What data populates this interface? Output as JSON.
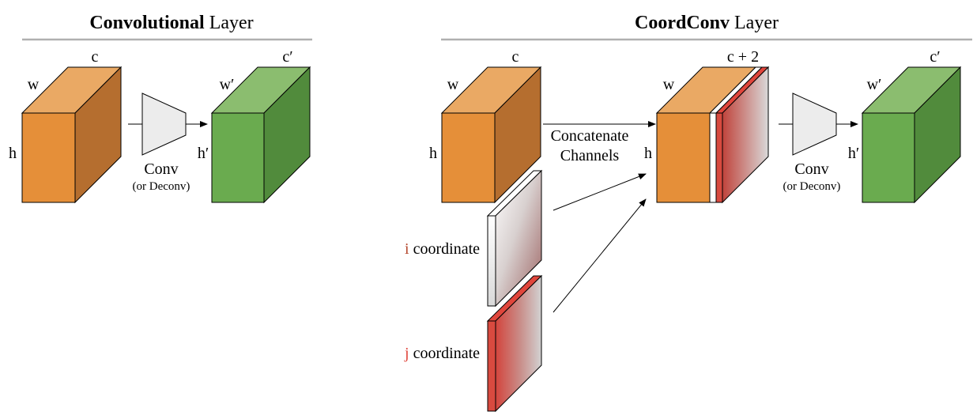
{
  "left_panel": {
    "title_bold": "Convolutional",
    "title_rest": " Layer",
    "input_block": {
      "w": "w",
      "c": "c",
      "h": "h"
    },
    "op": {
      "label": "Conv",
      "sublabel": "(or Deconv)"
    },
    "output_block": {
      "w": "w′",
      "c": "c′",
      "h": "h′"
    }
  },
  "right_panel": {
    "title_bold": "CoordConv",
    "title_rest": " Layer",
    "input_block": {
      "w": "w",
      "c": "c",
      "h": "h"
    },
    "i_coord": {
      "letter": "i",
      "text": " coordinate"
    },
    "j_coord": {
      "letter": "j",
      "text": " coordinate"
    },
    "concat": {
      "line1": "Concatenate",
      "line2": "Channels"
    },
    "concat_block": {
      "w": "w",
      "c": "c + 2",
      "h": "h"
    },
    "op": {
      "label": "Conv",
      "sublabel": "(or Deconv)"
    },
    "output_block": {
      "w": "w′",
      "c": "c′",
      "h": "h′"
    }
  },
  "colors": {
    "orange_front": "#e58f39",
    "orange_top": "#eaa964",
    "orange_side": "#b56e2f",
    "green_front": "#6aab4f",
    "green_top": "#8bbd6f",
    "green_side": "#518b3c",
    "coord_red": "#e0463c",
    "coord_gray": "#d0d0d0",
    "coord_letter": "#b5482e",
    "divider": "#b0b0b0"
  }
}
